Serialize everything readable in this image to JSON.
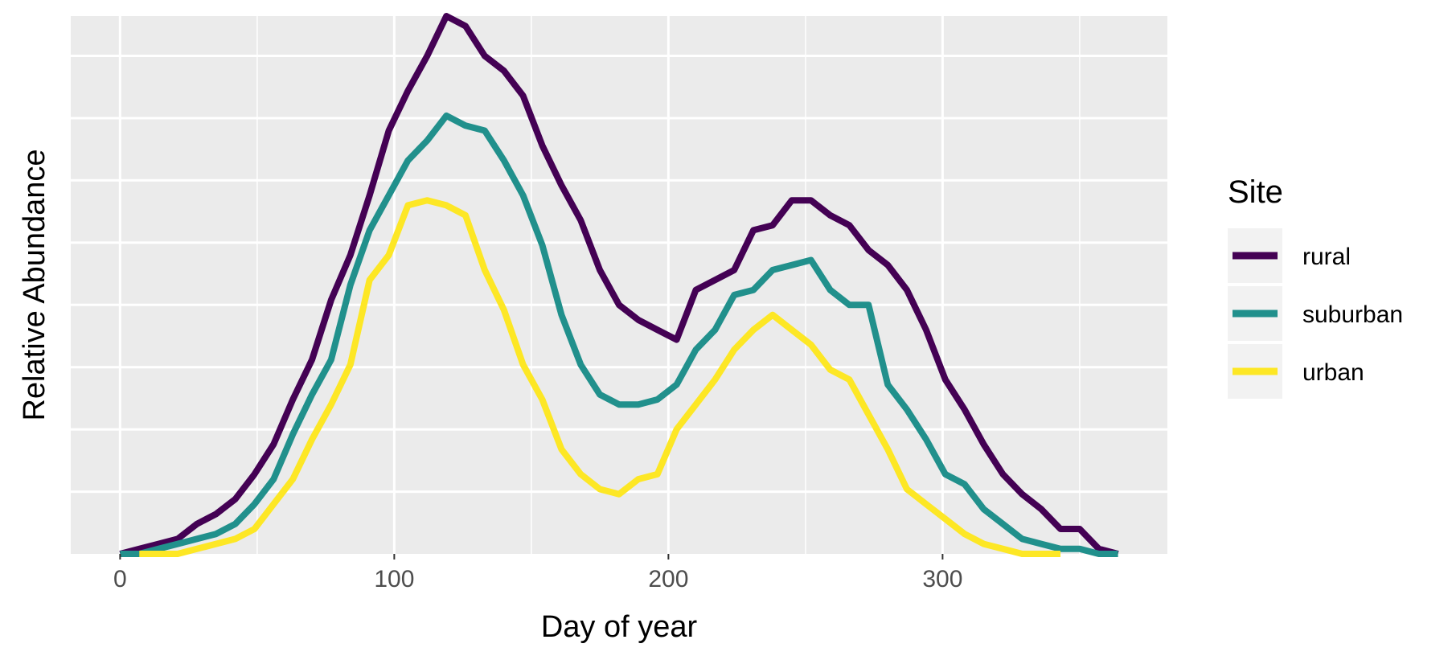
{
  "chart_data": {
    "type": "line",
    "xlabel": "Day of year",
    "ylabel": "Relative Abundance",
    "xlim": [
      -18,
      382
    ],
    "ylim": [
      0,
      1.08
    ],
    "x_ticks": [
      0,
      100,
      200,
      300
    ],
    "x_tick_labels": [
      "0",
      "100",
      "200",
      "300"
    ],
    "y_gridlines": [
      0.125,
      0.25,
      0.375,
      0.5,
      0.625,
      0.75,
      0.875,
      1.0
    ],
    "y_tick_labels": false,
    "grid": true,
    "panel_background": "#ebebeb",
    "legend": {
      "title": "Site",
      "position": "right",
      "key_background": "#f2f2f2"
    },
    "series": [
      {
        "name": "rural",
        "color": "#440154",
        "x": [
          0,
          7,
          14,
          21,
          28,
          35,
          42,
          49,
          56,
          63,
          70,
          77,
          84,
          91,
          98,
          105,
          112,
          119,
          126,
          133,
          140,
          147,
          154,
          161,
          168,
          175,
          182,
          189,
          196,
          203,
          210,
          217,
          224,
          231,
          238,
          245,
          252,
          259,
          266,
          273,
          280,
          287,
          294,
          301,
          308,
          315,
          322,
          329,
          336,
          343,
          350,
          357,
          364
        ],
        "y": [
          0.0,
          0.01,
          0.02,
          0.03,
          0.06,
          0.08,
          0.11,
          0.16,
          0.22,
          0.31,
          0.39,
          0.51,
          0.6,
          0.72,
          0.85,
          0.93,
          1.0,
          1.08,
          1.06,
          1.0,
          0.97,
          0.92,
          0.82,
          0.74,
          0.67,
          0.57,
          0.5,
          0.47,
          0.45,
          0.43,
          0.53,
          0.55,
          0.57,
          0.65,
          0.66,
          0.71,
          0.71,
          0.68,
          0.66,
          0.61,
          0.58,
          0.53,
          0.45,
          0.35,
          0.29,
          0.22,
          0.16,
          0.12,
          0.09,
          0.05,
          0.05,
          0.01,
          0.0
        ]
      },
      {
        "name": "suburban",
        "color": "#21908c",
        "x": [
          0,
          7,
          14,
          21,
          28,
          35,
          42,
          49,
          56,
          63,
          70,
          77,
          84,
          91,
          98,
          105,
          112,
          119,
          126,
          133,
          140,
          147,
          154,
          161,
          168,
          175,
          182,
          189,
          196,
          203,
          210,
          217,
          224,
          231,
          238,
          245,
          252,
          259,
          266,
          273,
          280,
          287,
          294,
          301,
          308,
          315,
          322,
          329,
          336,
          343,
          350,
          357,
          364
        ],
        "y": [
          0.0,
          0.0,
          0.01,
          0.02,
          0.03,
          0.04,
          0.06,
          0.1,
          0.15,
          0.24,
          0.32,
          0.39,
          0.54,
          0.65,
          0.72,
          0.79,
          0.83,
          0.88,
          0.86,
          0.85,
          0.79,
          0.72,
          0.62,
          0.48,
          0.38,
          0.32,
          0.3,
          0.3,
          0.31,
          0.34,
          0.41,
          0.45,
          0.52,
          0.53,
          0.57,
          0.58,
          0.59,
          0.53,
          0.5,
          0.5,
          0.34,
          0.29,
          0.23,
          0.16,
          0.14,
          0.09,
          0.06,
          0.03,
          0.02,
          0.01,
          0.01,
          0.0,
          0.0
        ]
      },
      {
        "name": "urban",
        "color": "#fde725",
        "x": [
          7,
          14,
          21,
          28,
          35,
          42,
          49,
          56,
          63,
          70,
          77,
          84,
          91,
          98,
          105,
          112,
          119,
          126,
          133,
          140,
          147,
          154,
          161,
          168,
          175,
          182,
          189,
          196,
          203,
          210,
          217,
          224,
          231,
          238,
          245,
          252,
          259,
          266,
          273,
          280,
          287,
          294,
          301,
          308,
          315,
          322,
          329,
          336,
          343
        ],
        "y": [
          0.0,
          0.0,
          0.0,
          0.01,
          0.02,
          0.03,
          0.05,
          0.1,
          0.15,
          0.23,
          0.3,
          0.38,
          0.55,
          0.6,
          0.7,
          0.71,
          0.7,
          0.68,
          0.57,
          0.49,
          0.38,
          0.31,
          0.21,
          0.16,
          0.13,
          0.12,
          0.15,
          0.16,
          0.25,
          0.3,
          0.35,
          0.41,
          0.45,
          0.48,
          0.45,
          0.42,
          0.37,
          0.35,
          0.28,
          0.21,
          0.13,
          0.1,
          0.07,
          0.04,
          0.02,
          0.01,
          0.0,
          0.0,
          0.0
        ]
      }
    ]
  }
}
